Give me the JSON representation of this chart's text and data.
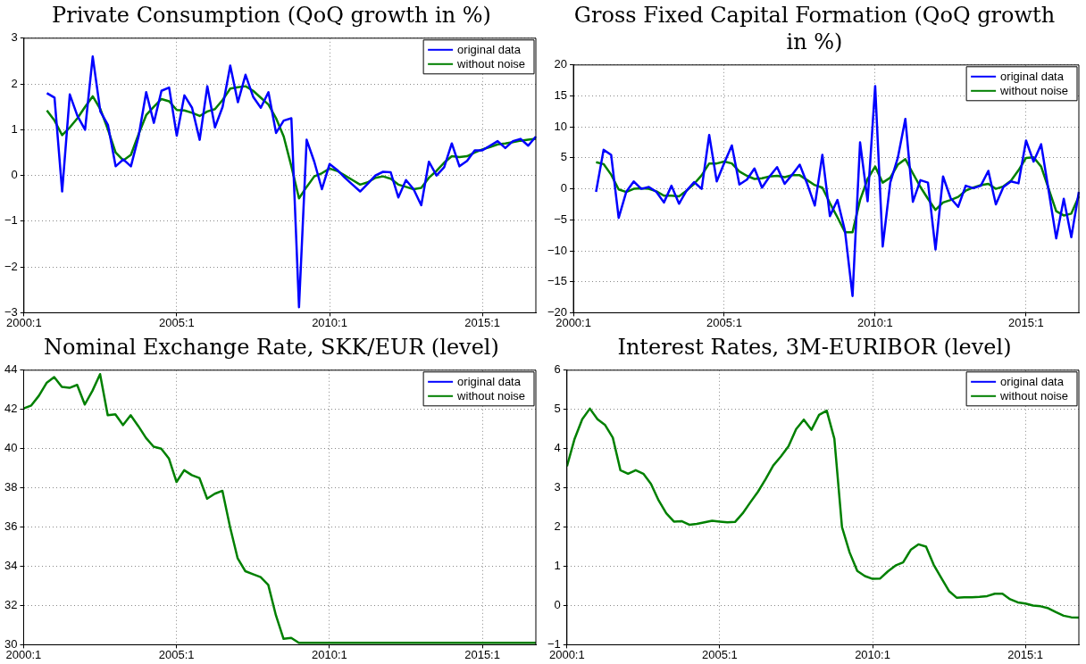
{
  "chart_data": [
    {
      "type": "line",
      "title": "Private Consumption (QoQ growth in %)",
      "legend": "top right",
      "grid": true,
      "categories": [
        "2000:1",
        null,
        null,
        null,
        null,
        null,
        null,
        null,
        null,
        null,
        null,
        null,
        null,
        null,
        null,
        null,
        null,
        null,
        null,
        null,
        "2005:1",
        null,
        null,
        null,
        null,
        null,
        null,
        null,
        null,
        null,
        null,
        null,
        null,
        null,
        null,
        null,
        null,
        null,
        null,
        null,
        "2010:1",
        null,
        null,
        null,
        null,
        null,
        null,
        null,
        null,
        null,
        null,
        null,
        null,
        null,
        null,
        null,
        null,
        null,
        null,
        null,
        "2015:1",
        null,
        null,
        null,
        null,
        null,
        null,
        null
      ],
      "ylim": [
        -3,
        3
      ],
      "yticks": [
        -3,
        -2,
        -1,
        0,
        1,
        2,
        3
      ],
      "series": [
        {
          "name": "original data",
          "color": "#0000ff",
          "values": [
            null,
            null,
            null,
            1.8,
            1.7,
            -0.35,
            1.77,
            1.3,
            1.0,
            2.6,
            1.4,
            1.1,
            0.2,
            0.35,
            0.2,
            0.85,
            1.82,
            1.15,
            1.85,
            1.92,
            0.87,
            1.75,
            1.48,
            0.78,
            1.95,
            1.05,
            1.5,
            2.4,
            1.6,
            2.2,
            1.72,
            1.48,
            1.82,
            0.93,
            1.2,
            1.25,
            -2.88,
            0.78,
            0.3,
            -0.3,
            0.25,
            0.12,
            -0.05,
            -0.2,
            -0.35,
            -0.18,
            0.0,
            0.08,
            0.07,
            -0.48,
            -0.1,
            -0.3,
            -0.65,
            0.3,
            0.0,
            0.18,
            0.7,
            0.2,
            0.32,
            0.55,
            0.55,
            0.65,
            0.75,
            0.6,
            0.75,
            0.8,
            0.65,
            0.85
          ]
        },
        {
          "name": "without noise",
          "color": "#008000",
          "values": [
            null,
            null,
            null,
            1.42,
            1.2,
            0.88,
            1.05,
            1.25,
            1.5,
            1.73,
            1.45,
            1.0,
            0.5,
            0.33,
            0.45,
            0.9,
            1.32,
            1.5,
            1.67,
            1.62,
            1.43,
            1.42,
            1.37,
            1.3,
            1.4,
            1.45,
            1.65,
            1.9,
            1.93,
            1.95,
            1.85,
            1.7,
            1.55,
            1.25,
            0.85,
            0.2,
            -0.5,
            -0.25,
            -0.02,
            0.05,
            0.15,
            0.1,
            0.0,
            -0.1,
            -0.2,
            -0.15,
            -0.05,
            -0.02,
            -0.07,
            -0.2,
            -0.25,
            -0.3,
            -0.27,
            -0.05,
            0.1,
            0.28,
            0.42,
            0.4,
            0.42,
            0.5,
            0.57,
            0.62,
            0.68,
            0.7,
            0.73,
            0.76,
            0.78,
            0.8
          ]
        }
      ]
    },
    {
      "type": "line",
      "title": "Gross Fixed Capital Formation (QoQ growth in %)",
      "legend": "top right",
      "grid": true,
      "categories": [
        "2000:1",
        null,
        null,
        null,
        null,
        null,
        null,
        null,
        null,
        null,
        null,
        null,
        null,
        null,
        null,
        null,
        null,
        null,
        null,
        null,
        "2005:1",
        null,
        null,
        null,
        null,
        null,
        null,
        null,
        null,
        null,
        null,
        null,
        null,
        null,
        null,
        null,
        null,
        null,
        null,
        null,
        "2010:1",
        null,
        null,
        null,
        null,
        null,
        null,
        null,
        null,
        null,
        null,
        null,
        null,
        null,
        null,
        null,
        null,
        null,
        null,
        null,
        "2015:1",
        null,
        null,
        null,
        null,
        null,
        null,
        null
      ],
      "ylim": [
        -20,
        20
      ],
      "yticks": [
        -20,
        -15,
        -10,
        -5,
        0,
        5,
        10,
        15,
        20
      ],
      "series": [
        {
          "name": "original data",
          "color": "#0000ff",
          "values": [
            null,
            null,
            null,
            -0.5,
            6.3,
            5.5,
            -4.7,
            -0.5,
            1.2,
            0.0,
            0.3,
            -0.5,
            -2.2,
            0.5,
            -2.4,
            -0.3,
            1.1,
            0.0,
            8.7,
            1.2,
            4.2,
            7.0,
            0.7,
            1.5,
            3.3,
            0.2,
            2.0,
            3.5,
            0.8,
            2.3,
            3.9,
            0.8,
            -2.7,
            5.5,
            -4.4,
            -1.8,
            -6.8,
            -17.3,
            7.5,
            -2.0,
            16.6,
            -9.3,
            1.0,
            5.0,
            11.3,
            -2.1,
            1.4,
            1.0,
            -9.8,
            2.0,
            -1.5,
            -2.9,
            0.5,
            0.1,
            0.5,
            2.9,
            -2.5,
            0.3,
            1.2,
            0.9,
            7.8,
            4.4,
            7.2,
            -0.3,
            -8.0,
            -1.6,
            -7.8,
            -0.5
          ]
        },
        {
          "name": "without noise",
          "color": "#008000",
          "values": [
            null,
            null,
            null,
            4.3,
            4.0,
            2.3,
            -0.1,
            -0.5,
            0.0,
            0.1,
            0.0,
            -0.4,
            -1.1,
            -1.1,
            -1.2,
            -0.3,
            0.8,
            2.2,
            4.1,
            4.1,
            4.4,
            4.1,
            2.8,
            2.1,
            1.6,
            1.7,
            2.0,
            2.1,
            1.9,
            2.2,
            2.2,
            1.4,
            0.6,
            0.2,
            -2.3,
            -4.6,
            -7.0,
            -7.0,
            -1.8,
            1.6,
            3.6,
            1.0,
            1.8,
            3.9,
            4.8,
            2.5,
            0.3,
            -1.6,
            -3.4,
            -2.2,
            -1.8,
            -1.3,
            -0.3,
            0.2,
            0.6,
            0.8,
            0.0,
            0.4,
            1.3,
            3.0,
            5.0,
            5.1,
            3.6,
            0.0,
            -3.6,
            -4.3,
            -4.0,
            -1.2
          ]
        }
      ]
    },
    {
      "type": "line",
      "title": "Nominal Exchange Rate, SKK/EUR (level)",
      "legend": "top right",
      "grid": true,
      "categories": [
        "2000:1",
        null,
        null,
        null,
        null,
        null,
        null,
        null,
        null,
        null,
        null,
        null,
        null,
        null,
        null,
        null,
        null,
        null,
        null,
        null,
        "2005:1",
        null,
        null,
        null,
        null,
        null,
        null,
        null,
        null,
        null,
        null,
        null,
        null,
        null,
        null,
        null,
        null,
        null,
        null,
        null,
        "2010:1",
        null,
        null,
        null,
        null,
        null,
        null,
        null,
        null,
        null,
        null,
        null,
        null,
        null,
        null,
        null,
        null,
        null,
        null,
        null,
        "2015:1",
        null,
        null,
        null,
        null,
        null,
        null,
        null
      ],
      "ylim": [
        30,
        44
      ],
      "yticks": [
        30,
        32,
        34,
        36,
        38,
        40,
        42,
        44
      ],
      "series": [
        {
          "name": "original data",
          "color": "#0000ff",
          "values": [
            null,
            null,
            null,
            null,
            null,
            null,
            null,
            null,
            null,
            null,
            null,
            null,
            null,
            null,
            null,
            null,
            null,
            null,
            null,
            null,
            null,
            null,
            null,
            null,
            null,
            null,
            null,
            null,
            null,
            null,
            null,
            null,
            null,
            null,
            null,
            null,
            null,
            null,
            null,
            null,
            null,
            null,
            null,
            null,
            null,
            null,
            null,
            null,
            null,
            null,
            null,
            null,
            null,
            null,
            null,
            null,
            null,
            null,
            null,
            null,
            null,
            null,
            null,
            null,
            null,
            null,
            null,
            null
          ]
        },
        {
          "name": "without noise",
          "color": "#008000",
          "values": [
            42.05,
            42.2,
            42.7,
            43.35,
            43.65,
            43.15,
            43.1,
            43.25,
            42.25,
            42.95,
            43.8,
            41.7,
            41.75,
            41.2,
            41.7,
            41.15,
            40.55,
            40.1,
            40.0,
            39.5,
            38.3,
            38.9,
            38.65,
            38.5,
            37.45,
            37.7,
            37.85,
            36.0,
            34.4,
            33.75,
            33.6,
            33.45,
            33.05,
            31.5,
            30.3,
            30.35,
            30.1,
            30.1,
            30.1,
            30.1,
            30.1,
            30.1,
            30.1,
            30.1,
            30.1,
            30.1,
            30.1,
            30.1,
            30.1,
            30.1,
            30.1,
            30.1,
            30.1,
            30.1,
            30.1,
            30.1,
            30.1,
            30.1,
            30.1,
            30.1,
            30.1,
            30.1,
            30.1,
            30.1,
            30.1,
            30.1,
            30.1,
            30.1
          ]
        }
      ]
    },
    {
      "type": "line",
      "title": "Interest Rates, 3M-EURIBOR (level)",
      "legend": "top right",
      "grid": true,
      "categories": [
        "2000:1",
        null,
        null,
        null,
        null,
        null,
        null,
        null,
        null,
        null,
        null,
        null,
        null,
        null,
        null,
        null,
        null,
        null,
        null,
        null,
        "2005:1",
        null,
        null,
        null,
        null,
        null,
        null,
        null,
        null,
        null,
        null,
        null,
        null,
        null,
        null,
        null,
        null,
        null,
        null,
        null,
        "2010:1",
        null,
        null,
        null,
        null,
        null,
        null,
        null,
        null,
        null,
        null,
        null,
        null,
        null,
        null,
        null,
        null,
        null,
        null,
        null,
        "2015:1",
        null,
        null,
        null,
        null,
        null,
        null,
        null
      ],
      "ylim": [
        -1,
        6
      ],
      "yticks": [
        -1,
        0,
        1,
        2,
        3,
        4,
        5,
        6
      ],
      "series": [
        {
          "name": "original data",
          "color": "#0000ff",
          "values": [
            null,
            null,
            null,
            null,
            null,
            null,
            null,
            null,
            null,
            null,
            null,
            null,
            null,
            null,
            null,
            null,
            null,
            null,
            null,
            null,
            null,
            null,
            null,
            null,
            null,
            null,
            null,
            null,
            null,
            null,
            null,
            null,
            null,
            null,
            null,
            null,
            null,
            null,
            null,
            null,
            null,
            null,
            null,
            null,
            null,
            null,
            null,
            null,
            null,
            null,
            null,
            null,
            null,
            null,
            null,
            null,
            null,
            null,
            null,
            null,
            null,
            null,
            null,
            null,
            null,
            null,
            null,
            null
          ]
        },
        {
          "name": "without noise",
          "color": "#008000",
          "values": [
            3.55,
            4.25,
            4.75,
            5.02,
            4.75,
            4.6,
            4.28,
            3.45,
            3.36,
            3.45,
            3.36,
            3.1,
            2.68,
            2.35,
            2.14,
            2.15,
            2.06,
            2.08,
            2.12,
            2.16,
            2.14,
            2.12,
            2.13,
            2.35,
            2.63,
            2.9,
            3.22,
            3.57,
            3.8,
            4.06,
            4.5,
            4.74,
            4.48,
            4.86,
            4.97,
            4.25,
            2.0,
            1.35,
            0.88,
            0.75,
            0.68,
            0.69,
            0.87,
            1.02,
            1.1,
            1.42,
            1.56,
            1.5,
            1.04,
            0.7,
            0.37,
            0.2,
            0.21,
            0.21,
            0.22,
            0.24,
            0.3,
            0.3,
            0.16,
            0.08,
            0.05,
            0.0,
            -0.02,
            -0.07,
            -0.17,
            -0.26,
            -0.3,
            -0.31
          ]
        }
      ]
    }
  ]
}
